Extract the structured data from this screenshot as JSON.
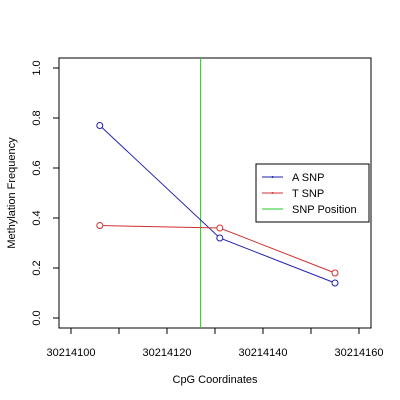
{
  "chart_data": {
    "type": "line",
    "xlabel": "CpG Coordinates",
    "ylabel": "Methylation Frequency",
    "xlim": [
      30214100,
      30214160
    ],
    "ylim": [
      0,
      1
    ],
    "x_ticks": [
      30214100,
      30214110,
      30214120,
      30214130,
      30214140,
      30214150,
      30214160
    ],
    "x_tick_labels": [
      "30214100",
      "30214120",
      "30214140",
      "30214160"
    ],
    "y_ticks": [
      0,
      0.2,
      0.4,
      0.6,
      0.8,
      1
    ],
    "y_tick_labels": [
      "0.0",
      "0.2",
      "0.4",
      "0.6",
      "0.8",
      "1.0"
    ],
    "grid": false,
    "legend_position": "right",
    "series": [
      {
        "name": "A SNP",
        "color": "#1f1fb0",
        "x": [
          30214106,
          30214131,
          30214155
        ],
        "y": [
          0.77,
          0.32,
          0.14
        ]
      },
      {
        "name": "T SNP",
        "color": "#d03030",
        "x": [
          30214106,
          30214131,
          30214155
        ],
        "y": [
          0.37,
          0.36,
          0.18
        ]
      }
    ],
    "vline": {
      "name": "SNP Position",
      "color": "#22cc22",
      "x": 30214127
    }
  }
}
